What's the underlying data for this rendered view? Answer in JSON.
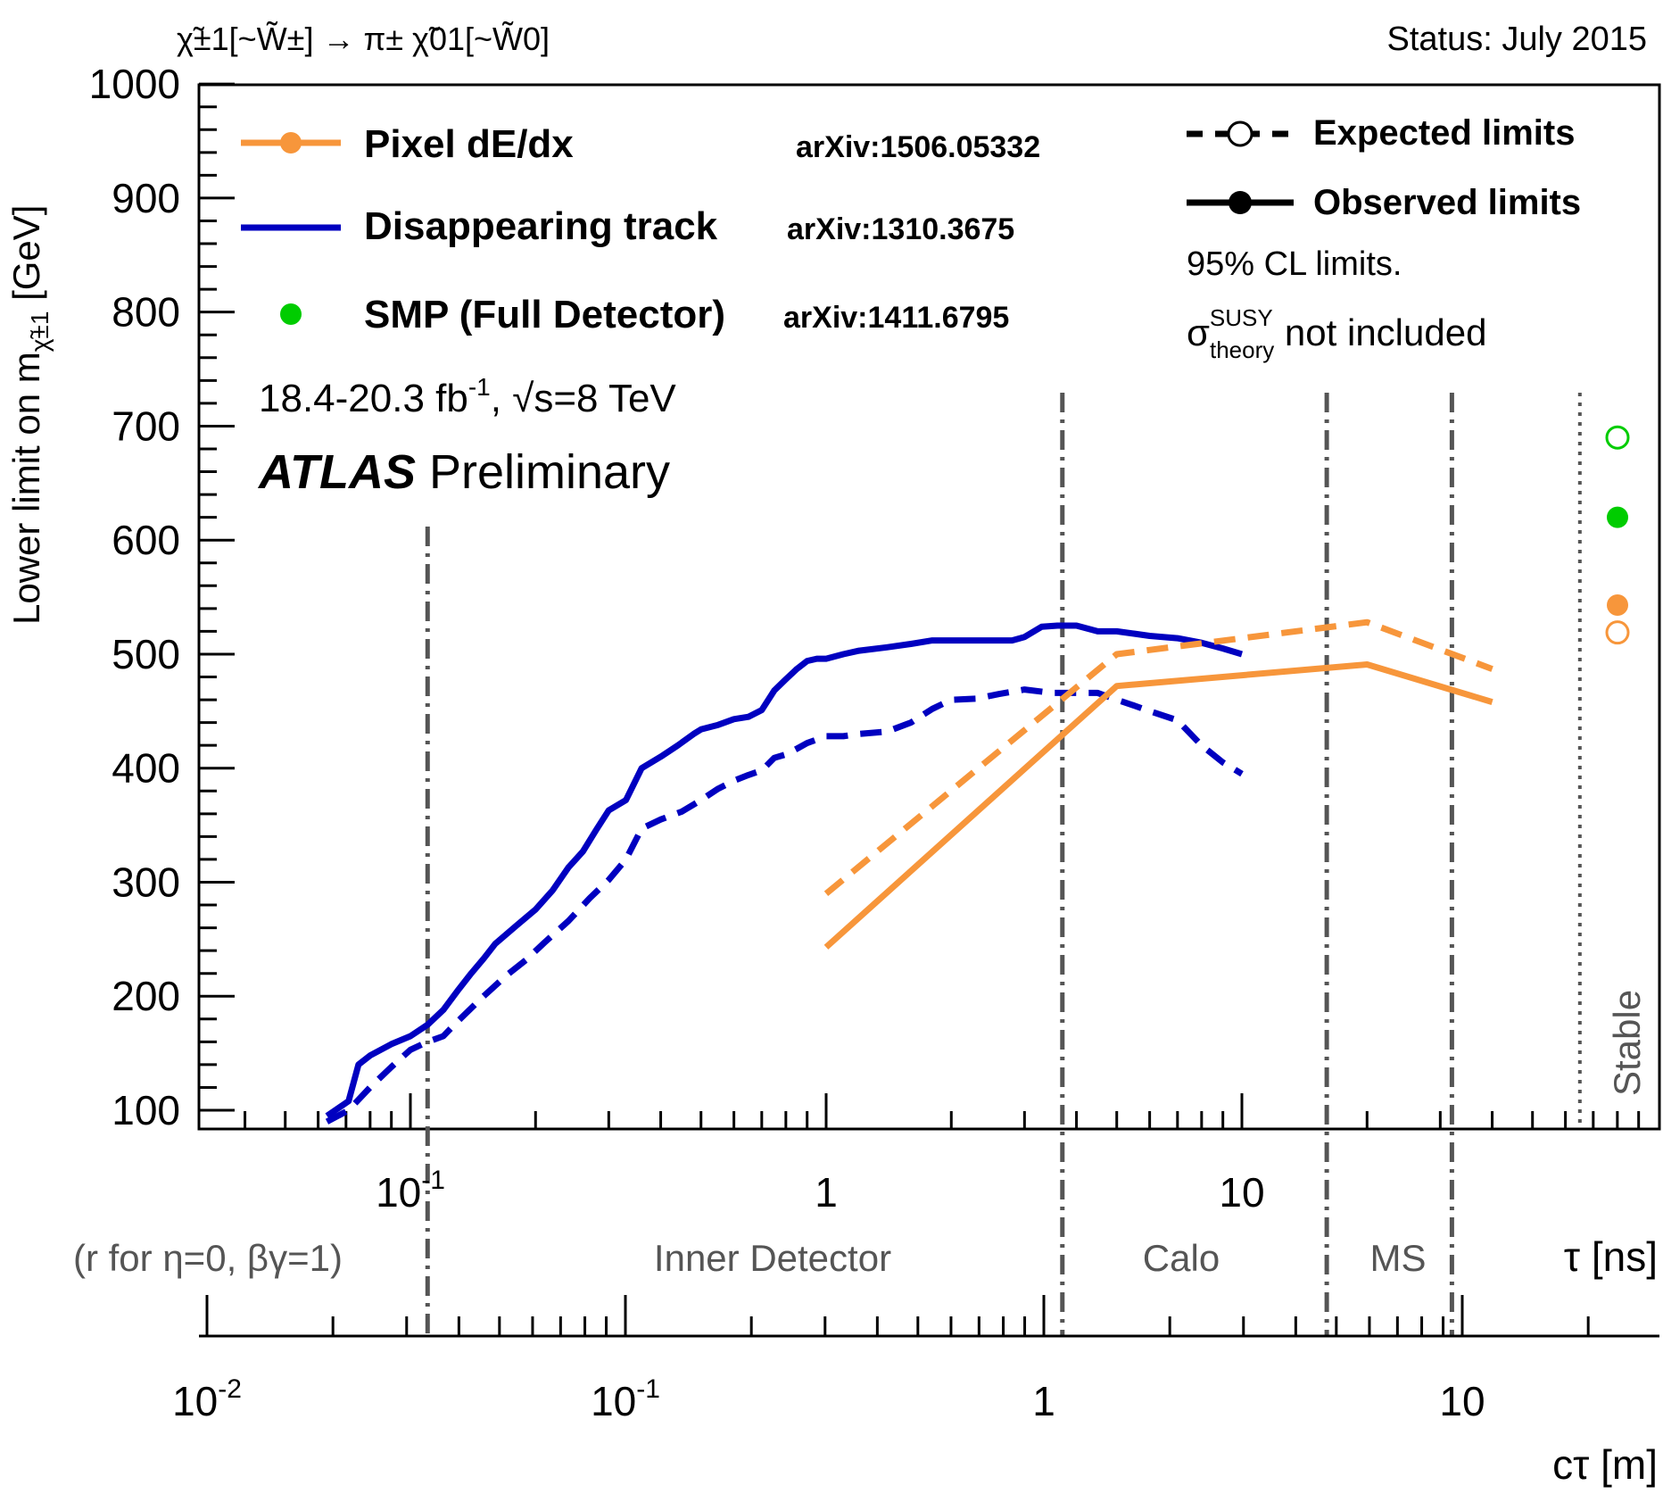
{
  "header": {
    "process": "χ̃±1[~W̃±] → π± χ̃01[~W̃0]",
    "status": "Status: July 2015"
  },
  "legend": {
    "pixel_label": "Pixel dE/dx",
    "pixel_ref": "arXiv:1506.05332",
    "dt_label": "Disappearing track",
    "dt_ref": "arXiv:1310.3675",
    "smp_label": "SMP (Full Detector)",
    "smp_ref": "arXiv:1411.6795",
    "expected": "Expected limits",
    "observed": "Observed limits",
    "cl_note": "95% CL limits.",
    "sigma_sym": "σ",
    "sigma_sup": "SUSY",
    "sigma_sub": "theory",
    "not_included": " not included",
    "lumi_a": "18.4-20.3 fb",
    "lumi_sup": "-1",
    "lumi_b": ", √s=8 TeV",
    "atlas": "ATLAS",
    "preliminary": " Preliminary"
  },
  "regions": {
    "r_note": "(r for η=0, βγ=1)",
    "inner": "Inner Detector",
    "calo": "Calo",
    "ms": "MS",
    "stable": "Stable"
  },
  "colors": {
    "pixel": "#f7963b",
    "dt": "#0000c0",
    "smp": "#00cc00",
    "divider": "#555555"
  },
  "chart_data": {
    "type": "line",
    "ylabel_main": "Lower limit on m",
    "ylabel_sub": "χ̃±1",
    "ylabel_unit": " [GeV]",
    "ylim": [
      100,
      1000
    ],
    "y_ticks": [
      "100",
      "200",
      "300",
      "400",
      "500",
      "600",
      "700",
      "800",
      "900",
      "1000"
    ],
    "x_tau": {
      "label": "τ [ns]",
      "scale": "log",
      "ticks": [
        {
          "base": "10",
          "exp": "-1",
          "value": 0.1
        },
        {
          "base": "1",
          "exp": "",
          "value": 1
        },
        {
          "base": "10",
          "exp": "",
          "value": 10
        }
      ]
    },
    "x_ctau": {
      "label": "cτ [m]",
      "scale": "log",
      "ticks": [
        {
          "base": "10",
          "exp": "-2",
          "value": 0.01
        },
        {
          "base": "10",
          "exp": "-1",
          "value": 0.1
        },
        {
          "base": "1",
          "exp": "",
          "value": 1
        },
        {
          "base": "10",
          "exp": "",
          "value": 10
        }
      ]
    },
    "region_boundaries_tau_ns": [
      0.11,
      3.7,
      16,
      32
    ],
    "stable_boundary_tau_ns": 65,
    "series": [
      {
        "name": "Disappearing track",
        "linestyle": "solid",
        "x": [
          0.063,
          0.071,
          0.075,
          0.08,
          0.09,
          0.1,
          0.11,
          0.12,
          0.13,
          0.14,
          0.15,
          0.16,
          0.18,
          0.2,
          0.22,
          0.24,
          0.26,
          0.28,
          0.3,
          0.33,
          0.36,
          0.4,
          0.44,
          0.48,
          0.5,
          0.55,
          0.6,
          0.65,
          0.7,
          0.75,
          0.8,
          0.85,
          0.9,
          0.95,
          1.0,
          1.1,
          1.2,
          1.4,
          1.6,
          1.8,
          2.0,
          2.3,
          2.6,
          2.8,
          3.0,
          3.3,
          3.6,
          4.0,
          4.5,
          5.0,
          5.5,
          6.0,
          7.0,
          8.0,
          9.0,
          10.0
        ],
        "y": [
          95,
          108,
          140,
          148,
          158,
          165,
          175,
          188,
          205,
          220,
          233,
          246,
          262,
          276,
          293,
          313,
          327,
          346,
          363,
          372,
          400,
          410,
          420,
          430,
          434,
          438,
          443,
          445,
          451,
          468,
          478,
          487,
          494,
          496,
          496,
          500,
          503,
          506,
          509,
          512,
          512,
          512,
          512,
          512,
          515,
          524,
          525,
          525,
          520,
          520,
          518,
          516,
          514,
          510,
          505,
          500
        ]
      },
      {
        "name": "Disappearing track",
        "linestyle": "dashed",
        "x": [
          0.063,
          0.071,
          0.08,
          0.09,
          0.1,
          0.11,
          0.12,
          0.13,
          0.15,
          0.17,
          0.19,
          0.21,
          0.24,
          0.27,
          0.3,
          0.33,
          0.36,
          0.4,
          0.45,
          0.5,
          0.55,
          0.6,
          0.65,
          0.7,
          0.75,
          0.8,
          0.85,
          0.9,
          1.0,
          1.1,
          1.2,
          1.4,
          1.6,
          1.8,
          2.0,
          2.3,
          2.6,
          3.0,
          3.5,
          4.0,
          4.5,
          5.0,
          5.5,
          6.0,
          7.0,
          8.0,
          9.0,
          10.0
        ],
        "y": [
          90,
          100,
          120,
          138,
          153,
          160,
          165,
          178,
          200,
          218,
          232,
          247,
          266,
          286,
          302,
          320,
          347,
          355,
          362,
          372,
          382,
          389,
          394,
          398,
          409,
          412,
          417,
          422,
          428,
          428,
          430,
          432,
          440,
          452,
          460,
          461,
          465,
          469,
          466,
          466,
          466,
          460,
          455,
          450,
          442,
          420,
          405,
          395
        ]
      },
      {
        "name": "Pixel dE/dx",
        "linestyle": "solid",
        "x": [
          1,
          5,
          20,
          40
        ],
        "y": [
          243,
          472,
          491,
          458
        ]
      },
      {
        "name": "Pixel dE/dx",
        "linestyle": "dashed",
        "x": [
          1,
          5,
          20,
          40
        ],
        "y": [
          290,
          500,
          528,
          487
        ]
      }
    ],
    "stable_points": [
      {
        "name": "SMP (Full Detector)",
        "kind": "expected",
        "y": 690
      },
      {
        "name": "SMP (Full Detector)",
        "kind": "observed",
        "y": 620
      },
      {
        "name": "Pixel dE/dx",
        "kind": "observed",
        "y": 543
      },
      {
        "name": "Pixel dE/dx",
        "kind": "expected",
        "y": 519
      }
    ]
  }
}
